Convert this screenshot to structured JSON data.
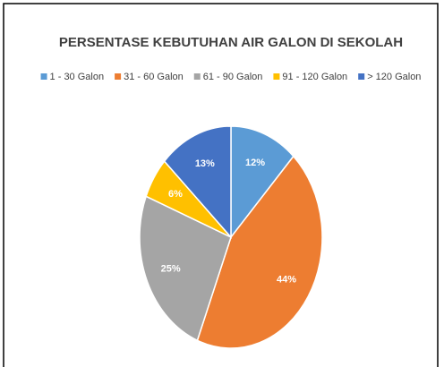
{
  "chart_data": {
    "type": "pie",
    "title": "PERSENTASE KEBUTUHAN AIR GALON DI SEKOLAH",
    "categories": [
      "1 - 30 Galon",
      "31 - 60 Galon",
      "61 - 90 Galon",
      "91 - 120 Galon",
      "> 120 Galon"
    ],
    "values": [
      12,
      44,
      25,
      6,
      13
    ],
    "value_labels": [
      "12%",
      "44%",
      "25%",
      "6%",
      "13%"
    ],
    "colors": [
      "#5b9bd5",
      "#ed7d31",
      "#a5a5a5",
      "#ffc000",
      "#4472c4"
    ],
    "legend": "top"
  }
}
